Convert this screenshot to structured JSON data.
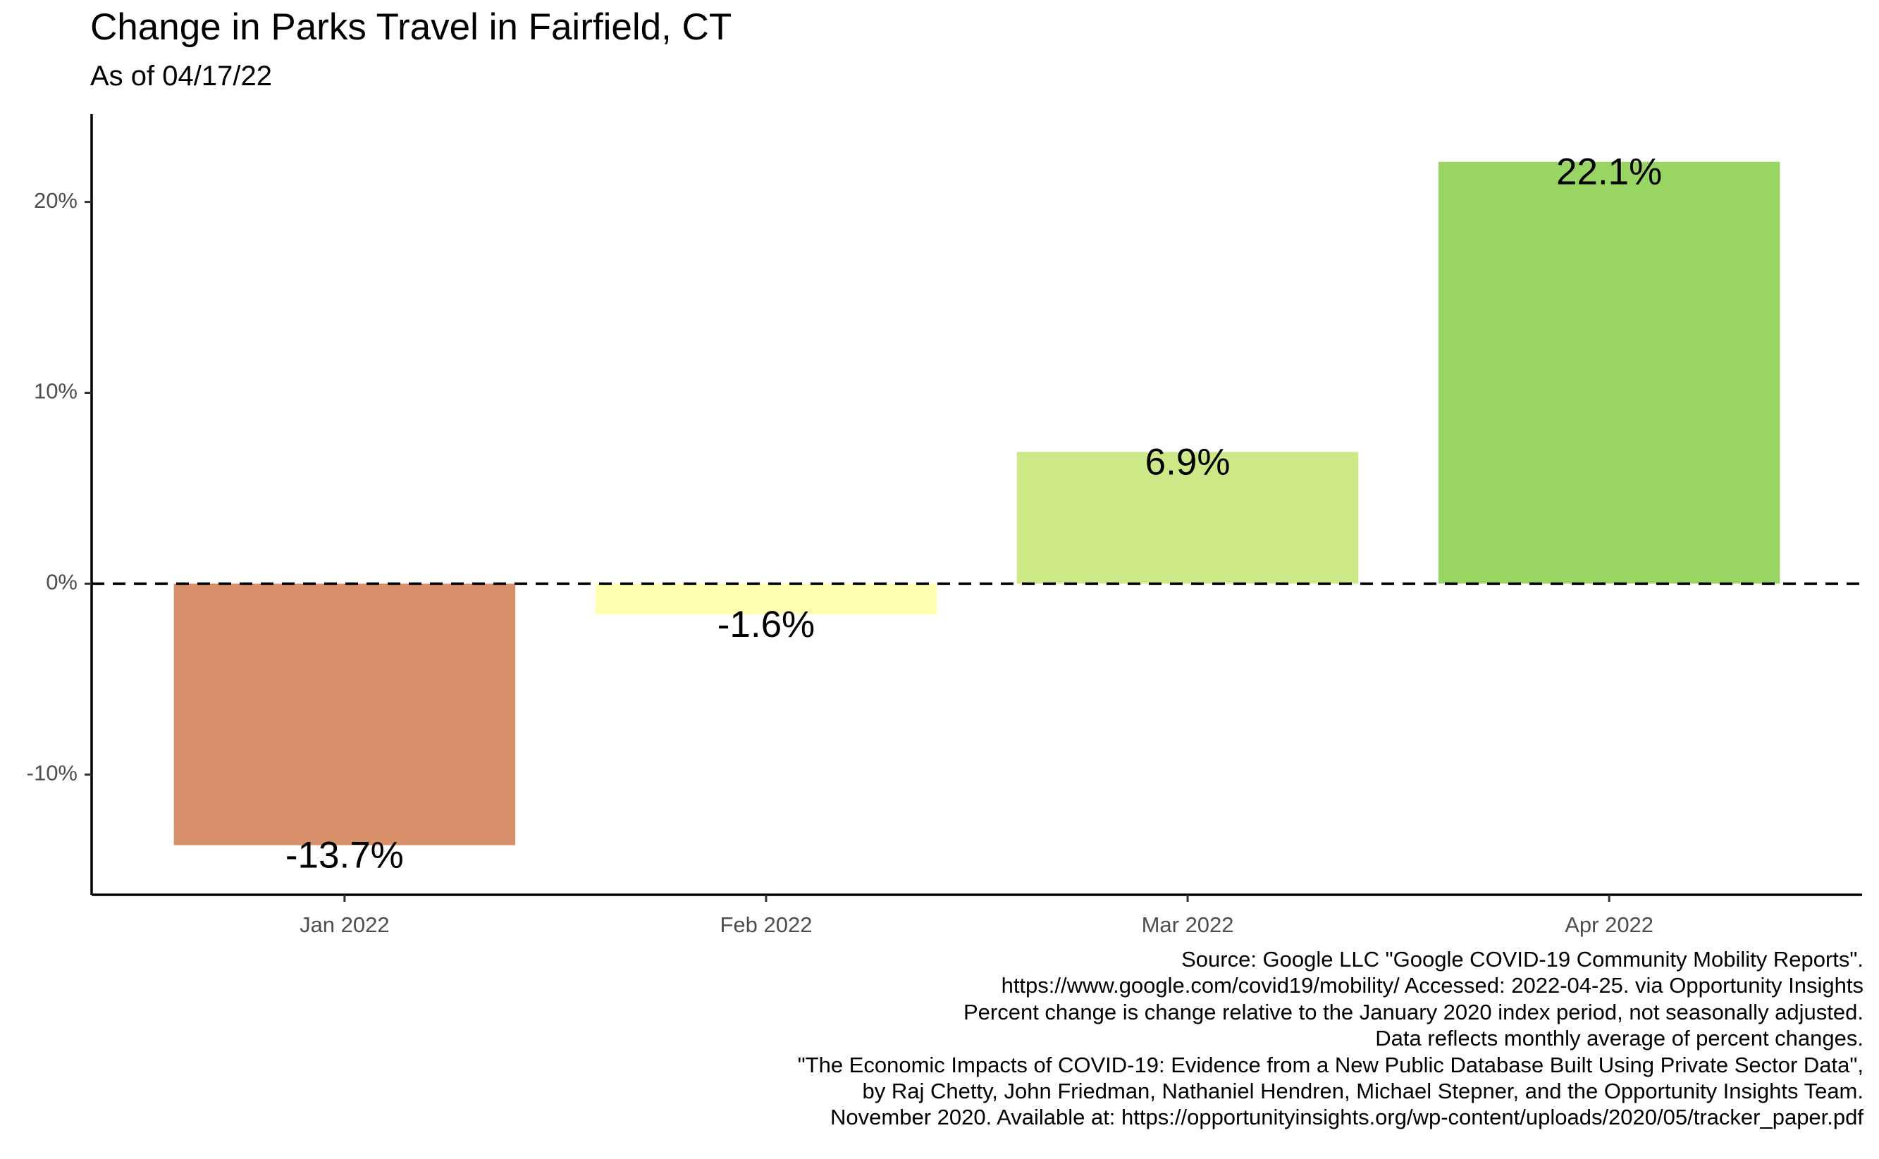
{
  "chart_data": {
    "type": "bar",
    "title": "Change in Parks Travel in Fairfield, CT",
    "subtitle": "As of 04/17/22",
    "categories": [
      "Jan 2022",
      "Feb 2022",
      "Mar 2022",
      "Apr 2022"
    ],
    "values": [
      -13.7,
      -1.6,
      6.9,
      22.1
    ],
    "data_labels": [
      "-13.7%",
      "-1.6%",
      "6.9%",
      "22.1%"
    ],
    "bar_colors": [
      "#d8916a",
      "#ffffb2",
      "#cde987",
      "#99d562"
    ],
    "ylim": [
      -16.3,
      24.6
    ],
    "yticks": [
      -10,
      0,
      10,
      20
    ],
    "ytick_labels": [
      "-10%",
      "0%",
      "10%",
      "20%"
    ],
    "reference_line": {
      "y": 0,
      "style": "dashed"
    },
    "xlabel": "",
    "ylabel": "",
    "grid": false,
    "legend": "none"
  },
  "caption": [
    "Source: Google LLC \"Google COVID-19 Community Mobility Reports\".",
    "https://www.google.com/covid19/mobility/ Accessed: 2022-04-25. via Opportunity Insights",
    "Percent change is change relative to the January 2020 index period, not seasonally adjusted.",
    "Data reflects monthly average of percent changes.",
    "\"The Economic Impacts of COVID-19: Evidence from a New Public Database Built Using Private Sector Data\",",
    "by Raj Chetty, John Friedman, Nathaniel Hendren, Michael Stepner, and the Opportunity Insights Team.",
    "November 2020. Available at: https://opportunityinsights.org/wp-content/uploads/2020/05/tracker_paper.pdf"
  ]
}
